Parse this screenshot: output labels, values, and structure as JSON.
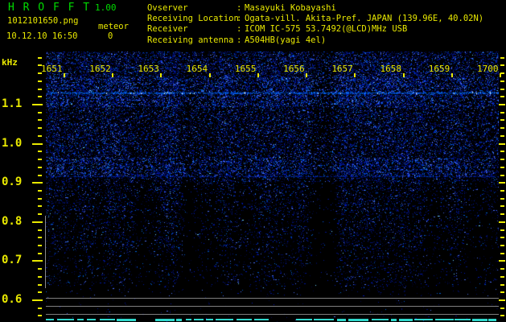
{
  "app": {
    "title": "H R O F F T",
    "version": "1.00",
    "filename": "1012101650.png",
    "mode_label": "meteor",
    "count": "0",
    "datetime": "10.12.10 16:50"
  },
  "header_info": {
    "separator": ":",
    "rows": [
      {
        "label": "Ovserver",
        "value": "Masayuki Kobayashi"
      },
      {
        "label": "Receiving Location",
        "value": "Ogata-vill. Akita-Pref. JAPAN (139.96E, 40.02N)"
      },
      {
        "label": "Receiver",
        "value": "ICOM IC-575 53.7492(@LCD)MHz USB"
      },
      {
        "label": "Receiving antenna",
        "value": "A504HB(yagi 4el)"
      }
    ]
  },
  "chart_data": {
    "type": "heatmap",
    "subtype": "radio-spectrogram",
    "title": "1012101650.png",
    "xlabel": "",
    "ylabel": "kHz",
    "x_tick_labels": [
      "1651",
      "1652",
      "1653",
      "1654",
      "1655",
      "1656",
      "1657",
      "1658",
      "1659",
      "1700"
    ],
    "y_tick_labels": [
      "1.1",
      "1.0",
      "0.9",
      "0.8",
      "0.7",
      "0.6"
    ],
    "y_major_step_khz": 0.1,
    "y_minor_per_major": 5,
    "y_range_khz": [
      0.55,
      1.24
    ],
    "grid": false,
    "legend": "none",
    "features": [
      {
        "kind": "bright-carrier-line",
        "freq_khz": 1.13,
        "span": "full-width"
      },
      {
        "kind": "faint-line",
        "freq_khz": 0.92,
        "span": "full-width"
      },
      {
        "kind": "dense-noise-band",
        "freq_khz_range": [
          1.17,
          1.24
        ]
      },
      {
        "kind": "dense-noise-band",
        "freq_khz_range": [
          0.92,
          0.97
        ]
      },
      {
        "kind": "gray-horizontal-line",
        "freq_khz": 0.61
      },
      {
        "kind": "gray-horizontal-line",
        "freq_khz": 0.59
      },
      {
        "kind": "gray-horizontal-line",
        "freq_khz": 0.565
      },
      {
        "kind": "cyan-dashed-baseline",
        "freq_khz": 0.553
      },
      {
        "kind": "gray-vertical-marker",
        "at_left_edge": true,
        "freq_khz_range": [
          0.815,
          0.63
        ]
      },
      {
        "kind": "meteor-echo-count",
        "value": 0
      }
    ]
  },
  "colors": {
    "background": "#000000",
    "title_green": "#00db00",
    "text_yellow": "#e9e900",
    "noise_blue": "#2233ff",
    "line_gray": "#7e7e7e",
    "baseline_cyan": "#2fd8cc"
  },
  "render": {
    "seed": 9
  }
}
